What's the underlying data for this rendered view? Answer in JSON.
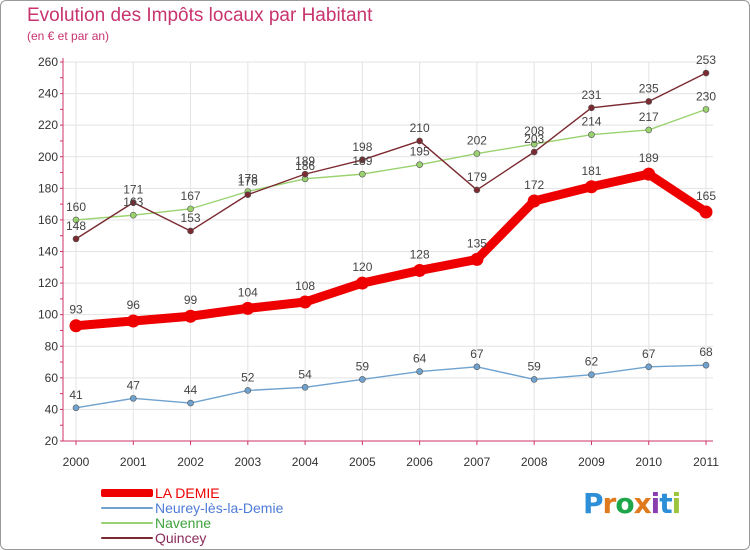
{
  "title": "Evolution des Impôts locaux par Habitant",
  "subtitle": "(en € et par an)",
  "logo": {
    "letters": [
      "P",
      "r",
      "o",
      "x",
      "i",
      "t",
      "i"
    ],
    "colors": [
      "#2d8fd8",
      "#e07a1e",
      "#1fa64b",
      "#e07a1e",
      "#8a3fb0",
      "#2d8fd8",
      "#9bc53d"
    ]
  },
  "colors": {
    "axis": "#cc3366",
    "grid": "#e3e3e3",
    "text": "#333333"
  },
  "chart_data": {
    "type": "line",
    "title": "Evolution des Impôts locaux par Habitant",
    "subtitle": "(en € et par an)",
    "xlabel": "",
    "ylabel": "",
    "ylim": [
      20,
      260
    ],
    "yticks": [
      20,
      40,
      60,
      80,
      100,
      120,
      140,
      160,
      180,
      200,
      220,
      240,
      260
    ],
    "categories": [
      "2000",
      "2001",
      "2002",
      "2003",
      "2004",
      "2005",
      "2006",
      "2007",
      "2008",
      "2009",
      "2010",
      "2011"
    ],
    "grid": true,
    "legend_position": "bottom-left",
    "series": [
      {
        "name": "LA DEMIE",
        "color": "#ee0000",
        "label_color": "#ee0000",
        "values": [
          93,
          96,
          99,
          104,
          108,
          120,
          128,
          135,
          172,
          181,
          189,
          165
        ]
      },
      {
        "name": "Neurey-lès-la-Demie",
        "color": "#6fa2cf",
        "label_color": "#4f7cd8",
        "values": [
          41,
          47,
          44,
          52,
          54,
          59,
          64,
          67,
          59,
          62,
          67,
          68
        ]
      },
      {
        "name": "Navenne",
        "color": "#99d26f",
        "label_color": "#3ea33e",
        "values": [
          160,
          163,
          167,
          178,
          186,
          189,
          195,
          202,
          208,
          214,
          217,
          230
        ]
      },
      {
        "name": "Quincey",
        "color": "#7a2a30",
        "label_color": "#8a2a5a",
        "values": [
          148,
          171,
          153,
          176,
          189,
          198,
          210,
          179,
          203,
          231,
          235,
          253
        ]
      }
    ]
  }
}
